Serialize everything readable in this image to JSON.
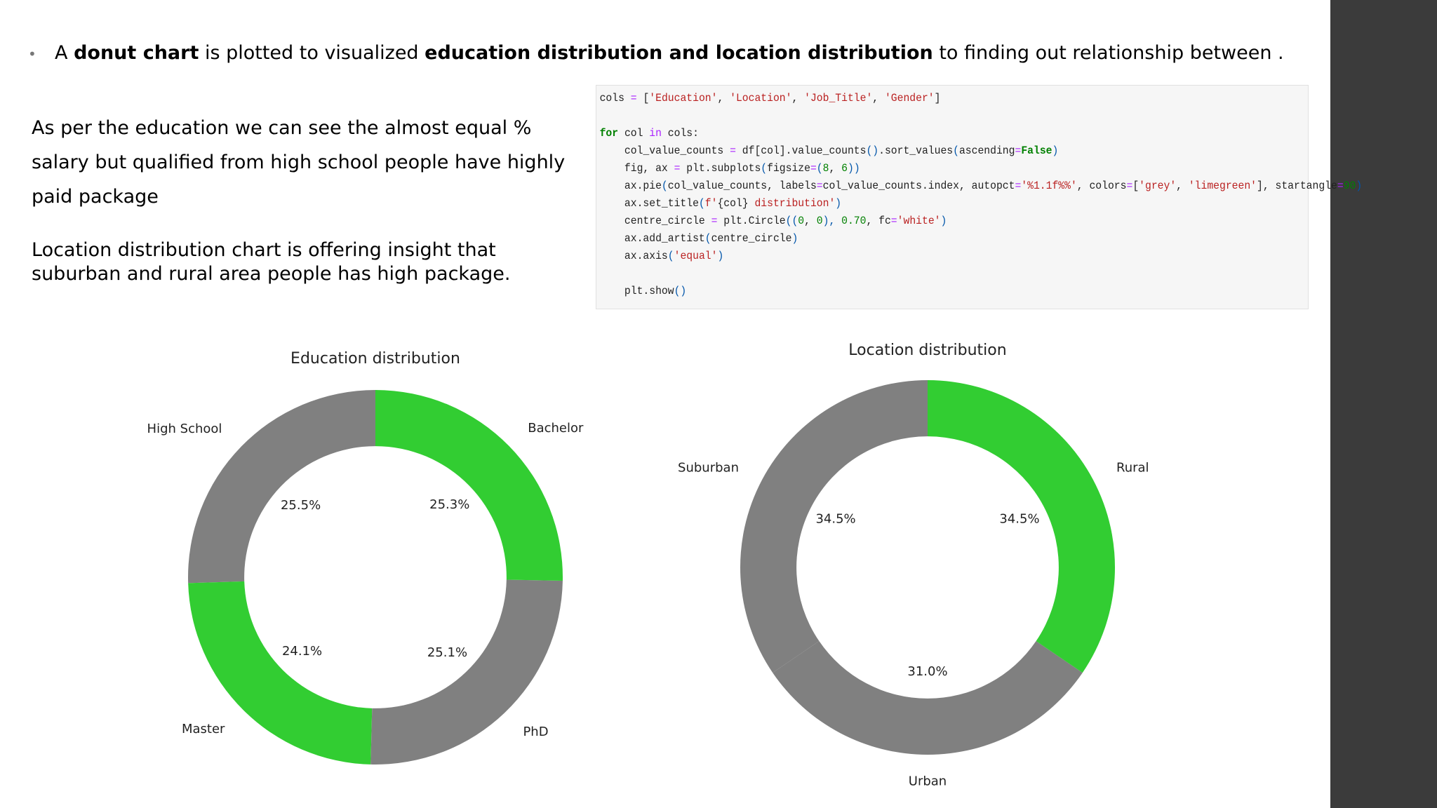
{
  "bullet": {
    "t1": "A ",
    "b1": "donut chart",
    "t2": " is plotted to visualized ",
    "b2": "education distribution and location distribution",
    "t3": " to finding out relationship between ."
  },
  "paragraph1": "As per the education we can see the almost equal % salary but qualified from high school people have highly paid package",
  "paragraph2": "Location distribution chart is offering insight that suburban and rural area people has high package.",
  "code_lines": [
    [
      [
        "cols ",
        ""
      ],
      [
        "=",
        "op"
      ],
      [
        " [",
        ""
      ],
      [
        "'Education'",
        "str"
      ],
      [
        ", ",
        ""
      ],
      [
        "'Location'",
        "str"
      ],
      [
        ", ",
        ""
      ],
      [
        "'Job_Title'",
        "str"
      ],
      [
        ", ",
        ""
      ],
      [
        "'Gender'",
        "str"
      ],
      [
        "]",
        ""
      ]
    ],
    [],
    [
      [
        "for",
        "kw"
      ],
      [
        " col ",
        ""
      ],
      [
        "in",
        "op"
      ],
      [
        " cols:",
        ""
      ]
    ],
    [
      [
        "    col_value_counts ",
        ""
      ],
      [
        "=",
        "op"
      ],
      [
        " df[col]",
        ""
      ],
      [
        ".",
        ""
      ],
      [
        "value_counts",
        ""
      ],
      [
        "()",
        "paren"
      ],
      [
        ".sort_values",
        ""
      ],
      [
        "(",
        "paren"
      ],
      [
        "ascending",
        ""
      ],
      [
        "=",
        "op"
      ],
      [
        "False",
        "kw"
      ],
      [
        ")",
        "paren"
      ]
    ],
    [
      [
        "    fig, ax ",
        ""
      ],
      [
        "=",
        "op"
      ],
      [
        " plt.subplots",
        ""
      ],
      [
        "(",
        "paren"
      ],
      [
        "figsize",
        ""
      ],
      [
        "=",
        "op"
      ],
      [
        "(",
        "paren"
      ],
      [
        "8",
        "num"
      ],
      [
        ", ",
        ""
      ],
      [
        "6",
        "num"
      ],
      [
        "))",
        "paren"
      ]
    ],
    [
      [
        "    ax.pie",
        ""
      ],
      [
        "(",
        "paren"
      ],
      [
        "col_value_counts, labels",
        ""
      ],
      [
        "=",
        "op"
      ],
      [
        "col_value_counts.index, autopct",
        ""
      ],
      [
        "=",
        "op"
      ],
      [
        "'%1.1f%%'",
        "str"
      ],
      [
        ", colors",
        ""
      ],
      [
        "=",
        "op"
      ],
      [
        "[",
        ""
      ],
      [
        "'grey'",
        "str"
      ],
      [
        ", ",
        ""
      ],
      [
        "'limegreen'",
        "str"
      ],
      [
        "], startangle",
        ""
      ],
      [
        "=",
        "op"
      ],
      [
        "90",
        "num"
      ],
      [
        ")",
        "paren"
      ]
    ],
    [
      [
        "    ax.set_title",
        ""
      ],
      [
        "(",
        "paren"
      ],
      [
        "f'",
        "str"
      ],
      [
        "{col}",
        ""
      ],
      [
        " distribution'",
        "str"
      ],
      [
        ")",
        "paren"
      ]
    ],
    [
      [
        "    centre_circle ",
        ""
      ],
      [
        "=",
        "op"
      ],
      [
        " plt.Circle",
        ""
      ],
      [
        "((",
        "paren"
      ],
      [
        "0",
        "num"
      ],
      [
        ", ",
        ""
      ],
      [
        "0",
        "num"
      ],
      [
        "), ",
        "paren"
      ],
      [
        "0.70",
        "num"
      ],
      [
        ", fc",
        ""
      ],
      [
        "=",
        "op"
      ],
      [
        "'white'",
        "str"
      ],
      [
        ")",
        "paren"
      ]
    ],
    [
      [
        "    ax.add_artist",
        ""
      ],
      [
        "(",
        "paren"
      ],
      [
        "centre_circle",
        ""
      ],
      [
        ")",
        "paren"
      ]
    ],
    [
      [
        "    ax.axis",
        ""
      ],
      [
        "(",
        "paren"
      ],
      [
        "'equal'",
        "str"
      ],
      [
        ")",
        "paren"
      ]
    ],
    [],
    [
      [
        "    plt.show",
        ""
      ],
      [
        "()",
        "paren"
      ]
    ]
  ],
  "colors": {
    "grey": "#808080",
    "limegreen": "#32cd32",
    "sidebar": "#3b3b3b"
  },
  "chart_data": [
    {
      "type": "pie",
      "title": "Education distribution",
      "labels": [
        "High School",
        "Master",
        "PhD",
        "Bachelor"
      ],
      "values": [
        25.5,
        24.1,
        25.1,
        25.3
      ],
      "value_labels": [
        "25.5%",
        "24.1%",
        "25.1%",
        "25.3%"
      ],
      "colors": [
        "#808080",
        "#32cd32",
        "#808080",
        "#32cd32"
      ],
      "hole": 0.7,
      "startangle": 90
    },
    {
      "type": "pie",
      "title": "Location distribution",
      "labels": [
        "Suburban",
        "Urban",
        "Rural"
      ],
      "values": [
        34.5,
        31.0,
        34.5
      ],
      "value_labels": [
        "34.5%",
        "31.0%",
        "34.5%"
      ],
      "colors": [
        "#808080",
        "#808080",
        "#32cd32"
      ],
      "hole": 0.7,
      "startangle": 90
    }
  ]
}
